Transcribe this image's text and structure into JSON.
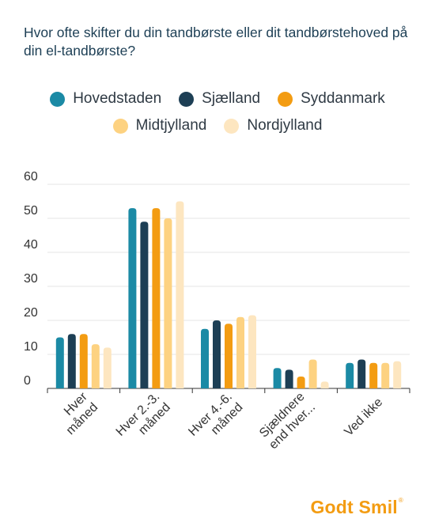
{
  "chart_data": {
    "type": "bar",
    "title": "Hvor ofte skifter du din tandbørste eller dit tandbørstehoved på din el-tandbørste?",
    "xlabel": "",
    "ylabel": "",
    "ylim": [
      0,
      60
    ],
    "yticks": [
      0,
      10,
      20,
      30,
      40,
      50,
      60
    ],
    "grid": true,
    "legend_position": "top",
    "categories": [
      [
        "Hver",
        "måned"
      ],
      [
        "Hver 2.-3.",
        "måned"
      ],
      [
        "Hver 4.-6.",
        "måned"
      ],
      [
        "Sjældnere",
        "end hver..."
      ],
      [
        "Ved ikke"
      ]
    ],
    "series": [
      {
        "name": "Hovedstaden",
        "color": "#1b8aa5",
        "values": [
          15,
          53,
          17.5,
          6,
          7.5
        ]
      },
      {
        "name": "Sjælland",
        "color": "#1d3f55",
        "values": [
          16,
          49,
          20,
          5.5,
          8.5
        ]
      },
      {
        "name": "Syddanmark",
        "color": "#f39c12",
        "values": [
          16,
          53,
          19,
          3.5,
          7.5
        ]
      },
      {
        "name": "Midtjylland",
        "color": "#fdd281",
        "values": [
          13,
          50,
          21,
          8.5,
          7.5
        ]
      },
      {
        "name": "Nordjylland",
        "color": "#fde6c0",
        "values": [
          12,
          55,
          21.5,
          2,
          8
        ]
      }
    ]
  },
  "brand": {
    "text": "Godt Smil",
    "mark": "®"
  }
}
